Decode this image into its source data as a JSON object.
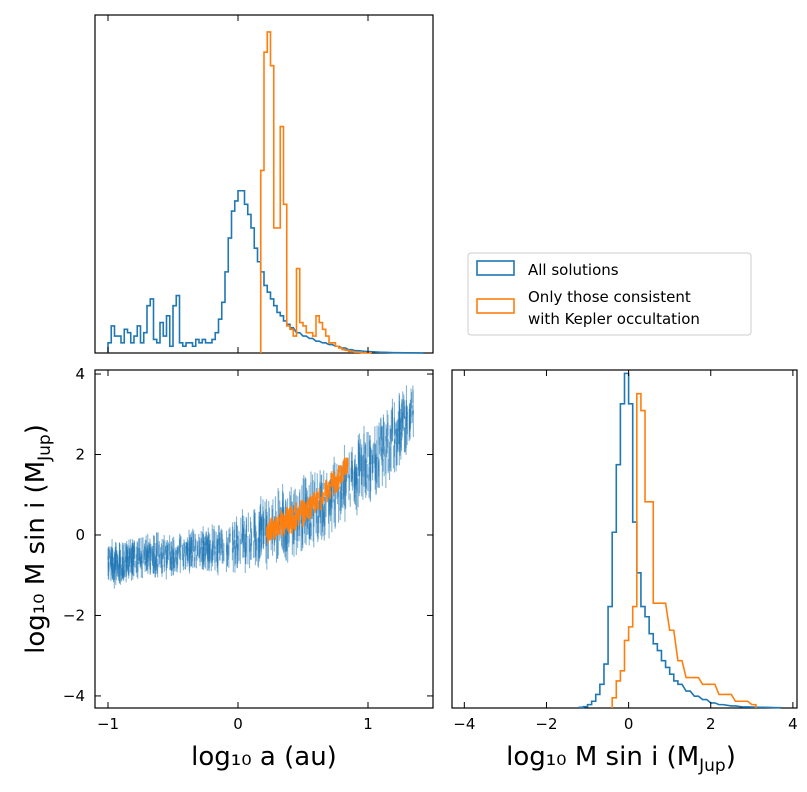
{
  "colors": {
    "all": "#1f77b4",
    "kepler": "#ff7f0e"
  },
  "legend": {
    "all_label": "All solutions",
    "kepler_label_line1": "Only those consistent",
    "kepler_label_line2": "with Kepler occultation"
  },
  "axes": {
    "xlabel_a": "log₁₀ a (au)",
    "ylabel_msini": "log₁₀ M sin i (M",
    "ylabel_msini_sub": "Jup",
    "ylabel_close": ")",
    "xlabel_msini": "log₁₀ M sin i (M",
    "xlabel_msini_sub": "Jup",
    "xlabel_close": ")"
  },
  "chart_data": [
    {
      "type": "histogram",
      "panel": "top-left",
      "x_variable": "log10 a (au)",
      "xlim": [
        -1.1,
        1.5
      ],
      "ylim": [
        0,
        1.0
      ],
      "yticks": "none",
      "series": [
        {
          "name": "All solutions",
          "x": [
            -1.0,
            -0.975,
            -0.95,
            -0.925,
            -0.9,
            -0.875,
            -0.85,
            -0.825,
            -0.8,
            -0.775,
            -0.75,
            -0.725,
            -0.7,
            -0.675,
            -0.65,
            -0.625,
            -0.6,
            -0.575,
            -0.55,
            -0.525,
            -0.5,
            -0.475,
            -0.45,
            -0.425,
            -0.4,
            -0.375,
            -0.35,
            -0.325,
            -0.3,
            -0.275,
            -0.25,
            -0.225,
            -0.2,
            -0.175,
            -0.15,
            -0.125,
            -0.1,
            -0.075,
            -0.05,
            -0.025,
            0.0,
            0.025,
            0.05,
            0.075,
            0.1,
            0.125,
            0.15,
            0.175,
            0.2,
            0.225,
            0.25,
            0.275,
            0.3,
            0.325,
            0.35,
            0.375,
            0.4,
            0.45,
            0.5,
            0.55,
            0.6,
            0.65,
            0.7,
            0.75,
            0.8,
            0.85,
            0.9,
            1.0,
            1.1,
            1.2,
            1.3,
            1.4
          ],
          "y": [
            0.03,
            0.08,
            0.05,
            0.05,
            0.03,
            0.07,
            0.06,
            0.03,
            0.05,
            0.08,
            0.03,
            0.06,
            0.14,
            0.16,
            0.04,
            0.03,
            0.09,
            0.05,
            0.11,
            0.02,
            0.14,
            0.17,
            0.03,
            0.02,
            0.03,
            0.03,
            0.02,
            0.04,
            0.03,
            0.04,
            0.03,
            0.03,
            0.04,
            0.06,
            0.1,
            0.15,
            0.24,
            0.34,
            0.42,
            0.45,
            0.48,
            0.48,
            0.44,
            0.41,
            0.37,
            0.31,
            0.27,
            0.24,
            0.2,
            0.18,
            0.16,
            0.14,
            0.12,
            0.11,
            0.095,
            0.085,
            0.075,
            0.06,
            0.05,
            0.043,
            0.035,
            0.03,
            0.025,
            0.02,
            0.015,
            0.01,
            0.007,
            0.004,
            0.002,
            0.001,
            0.0005,
            0.0002
          ]
        },
        {
          "name": "Only those consistent with Kepler occultation",
          "x": [
            0.175,
            0.2,
            0.225,
            0.25,
            0.275,
            0.3,
            0.325,
            0.35,
            0.375,
            0.4,
            0.425,
            0.45,
            0.475,
            0.5,
            0.525,
            0.55,
            0.575,
            0.6,
            0.625,
            0.65,
            0.675,
            0.7,
            0.725,
            0.75,
            0.775,
            0.8,
            0.825,
            0.85,
            0.875,
            0.9,
            0.95,
            1.0
          ],
          "y": [
            0.54,
            0.89,
            0.95,
            0.85,
            0.37,
            0.37,
            0.67,
            0.44,
            0.08,
            0.07,
            0.05,
            0.25,
            0.09,
            0.08,
            0.06,
            0.06,
            0.05,
            0.11,
            0.09,
            0.07,
            0.05,
            0.03,
            0.03,
            0.02,
            0.015,
            0.01,
            0.008,
            0.005,
            0.003,
            0.002,
            0.001,
            0.0005
          ]
        }
      ]
    },
    {
      "type": "scatter",
      "panel": "bottom-left",
      "xlabel": "log10 a (au)",
      "ylabel": "log10 M sin i (MJup)",
      "xlim": [
        -1.1,
        1.5
      ],
      "ylim": [
        -4.3,
        4.1
      ],
      "xticks": [
        "−1",
        "0",
        "1"
      ],
      "yticks": [
        "−4",
        "−2",
        "0",
        "2",
        "4"
      ],
      "series": [
        {
          "name": "All solutions",
          "description_points": [
            {
              "x": -1.0,
              "y_range": [
                -1.3,
                -0.2
              ]
            },
            {
              "x": -0.9,
              "y_range": [
                -1.2,
                -0.2
              ]
            },
            {
              "x": -0.8,
              "y_range": [
                -1.1,
                -0.1
              ]
            },
            {
              "x": -0.65,
              "y_range": [
                -1.1,
                0.0
              ]
            },
            {
              "x": -0.5,
              "y_range": [
                -1.0,
                0.0
              ]
            },
            {
              "x": -0.35,
              "y_range": [
                -0.9,
                0.1
              ]
            },
            {
              "x": -0.2,
              "y_range": [
                -0.9,
                0.2
              ]
            },
            {
              "x": 0.0,
              "y_range": [
                -0.9,
                0.5
              ]
            },
            {
              "x": 0.2,
              "y_range": [
                -0.8,
                0.9
              ]
            },
            {
              "x": 0.4,
              "y_range": [
                -0.6,
                1.2
              ]
            },
            {
              "x": 0.6,
              "y_range": [
                -0.3,
                1.6
              ]
            },
            {
              "x": 0.8,
              "y_range": [
                0.3,
                2.1
              ]
            },
            {
              "x": 1.0,
              "y_range": [
                0.8,
                2.7
              ]
            },
            {
              "x": 1.2,
              "y_range": [
                1.5,
                3.3
              ]
            },
            {
              "x": 1.35,
              "y_range": [
                2.5,
                3.8
              ]
            }
          ]
        },
        {
          "name": "Only those consistent with Kepler occultation",
          "description_points": [
            {
              "x": 0.22,
              "y_range": [
                -0.2,
                0.3
              ]
            },
            {
              "x": 0.28,
              "y_range": [
                -0.1,
                0.5
              ]
            },
            {
              "x": 0.36,
              "y_range": [
                0.0,
                0.7
              ]
            },
            {
              "x": 0.43,
              "y_range": [
                0.1,
                0.8
              ]
            },
            {
              "x": 0.52,
              "y_range": [
                0.3,
                0.9
              ]
            },
            {
              "x": 0.62,
              "y_range": [
                0.6,
                1.2
              ]
            },
            {
              "x": 0.75,
              "y_range": [
                1.0,
                1.6
              ]
            },
            {
              "x": 0.85,
              "y_range": [
                1.6,
                2.1
              ]
            }
          ]
        }
      ]
    },
    {
      "type": "histogram",
      "panel": "bottom-right",
      "x_variable": "log10 M sin i (MJup)",
      "xlim": [
        -4.3,
        4.1
      ],
      "ylim": [
        0,
        1.0
      ],
      "xticks": [
        "−4",
        "−2",
        "0",
        "2",
        "4"
      ],
      "yticks": "none",
      "series": [
        {
          "name": "All solutions",
          "x": [
            -1.2,
            -1.1,
            -1.0,
            -0.9,
            -0.8,
            -0.7,
            -0.6,
            -0.5,
            -0.4,
            -0.3,
            -0.2,
            -0.1,
            0.0,
            0.1,
            0.2,
            0.3,
            0.4,
            0.5,
            0.6,
            0.7,
            0.8,
            0.9,
            1.0,
            1.1,
            1.2,
            1.4,
            1.6,
            1.8,
            2.0,
            2.2,
            2.5,
            2.8,
            3.2,
            3.6
          ],
          "y": [
            0.002,
            0.004,
            0.01,
            0.02,
            0.04,
            0.07,
            0.13,
            0.3,
            0.52,
            0.72,
            0.9,
            0.99,
            0.9,
            0.55,
            0.4,
            0.3,
            0.27,
            0.22,
            0.19,
            0.17,
            0.14,
            0.12,
            0.1,
            0.08,
            0.07,
            0.05,
            0.035,
            0.025,
            0.015,
            0.01,
            0.006,
            0.003,
            0.002,
            0.001
          ]
        },
        {
          "name": "Only those consistent with Kepler occultation",
          "x": [
            -0.4,
            -0.3,
            -0.2,
            -0.1,
            0.0,
            0.1,
            0.2,
            0.3,
            0.4,
            0.5,
            0.6,
            0.8,
            1.0,
            1.2,
            1.4,
            1.6,
            1.8,
            2.0,
            2.2,
            2.4,
            2.6,
            2.8,
            3.0
          ],
          "y": [
            0.03,
            0.08,
            0.11,
            0.2,
            0.24,
            0.3,
            0.93,
            0.88,
            0.61,
            0.61,
            0.31,
            0.31,
            0.23,
            0.14,
            0.09,
            0.09,
            0.07,
            0.07,
            0.04,
            0.04,
            0.02,
            0.02,
            0.01
          ]
        }
      ]
    }
  ]
}
